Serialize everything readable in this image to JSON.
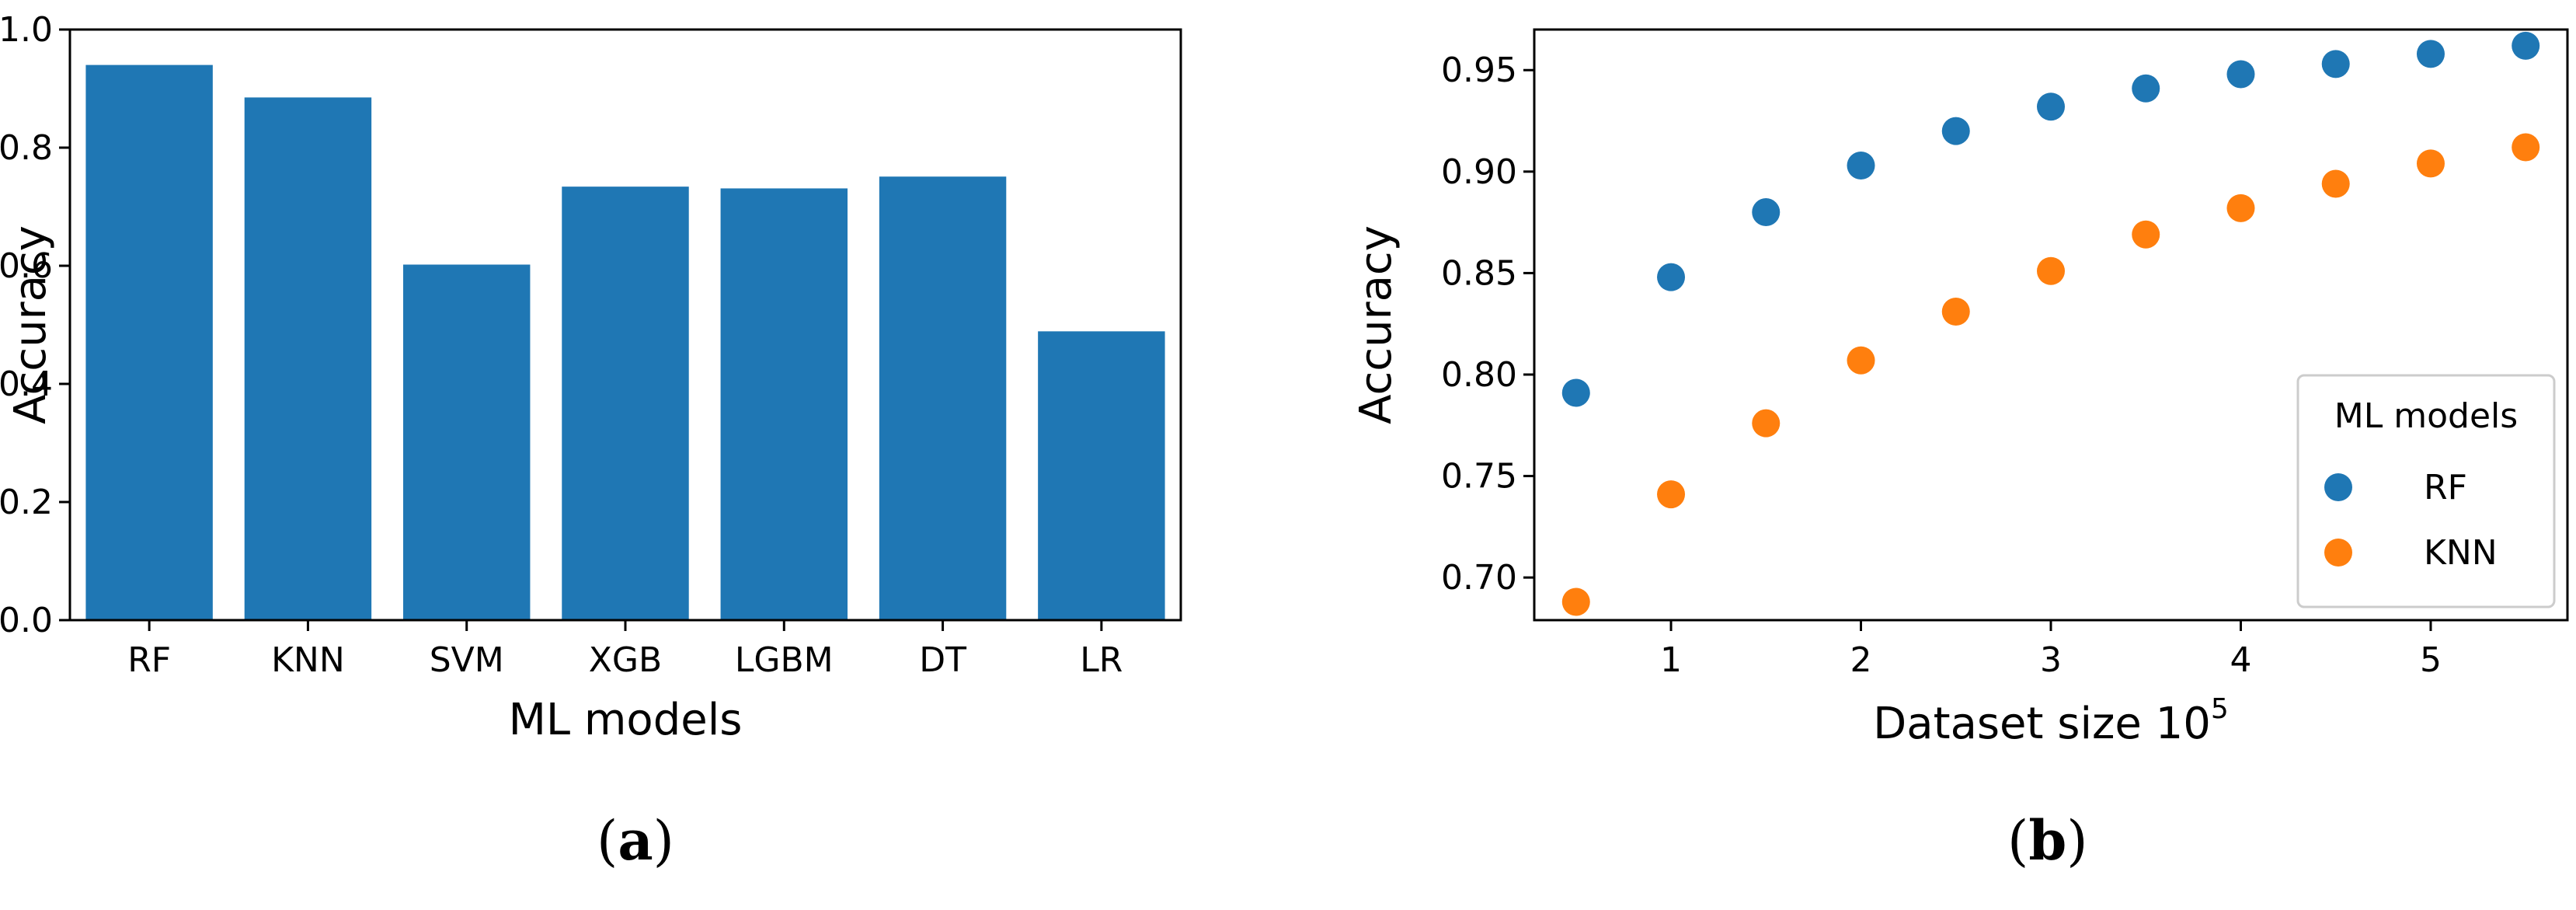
{
  "colors": {
    "rf": "#1f77b4",
    "knn": "#ff7f0e",
    "bar": "#1f77b4",
    "axis": "#000000"
  },
  "chart_data": [
    {
      "type": "bar",
      "panel": "(a)",
      "categories": [
        "RF",
        "KNN",
        "SVM",
        "XGB",
        "LGBM",
        "DT",
        "LR"
      ],
      "values": [
        0.94,
        0.885,
        0.602,
        0.734,
        0.731,
        0.751,
        0.489
      ],
      "xlabel": "ML models",
      "ylabel": "Accuracy",
      "ylim": [
        0,
        1.0
      ],
      "yticks": [
        "0.0",
        "0.2",
        "0.4",
        "0.6",
        "0.8",
        "1.0"
      ],
      "grid": false
    },
    {
      "type": "scatter",
      "panel": "(b)",
      "xlabel_main": "Dataset size 10",
      "xlabel_sup": "5",
      "ylabel": "Accuracy",
      "x": [
        0.5,
        1,
        1.5,
        2,
        2.5,
        3,
        3.5,
        4,
        4.5,
        5,
        5.5
      ],
      "xlim": [
        0.28,
        5.72
      ],
      "ylim": [
        0.679,
        0.97
      ],
      "xticks": [
        "1",
        "2",
        "3",
        "4",
        "5"
      ],
      "yticks": [
        "0.70",
        "0.75",
        "0.80",
        "0.85",
        "0.90",
        "0.95"
      ],
      "series": [
        {
          "name": "RF",
          "values": [
            0.791,
            0.848,
            0.88,
            0.903,
            0.92,
            0.932,
            0.941,
            0.948,
            0.953,
            0.958,
            0.962
          ]
        },
        {
          "name": "KNN",
          "values": [
            0.688,
            0.741,
            0.776,
            0.807,
            0.831,
            0.851,
            0.869,
            0.882,
            0.894,
            0.904,
            0.912
          ]
        }
      ],
      "legend": {
        "title": "ML models",
        "placement": "lower-right"
      },
      "grid": false
    }
  ],
  "panel_labels": {
    "a": "a",
    "b": "b"
  }
}
